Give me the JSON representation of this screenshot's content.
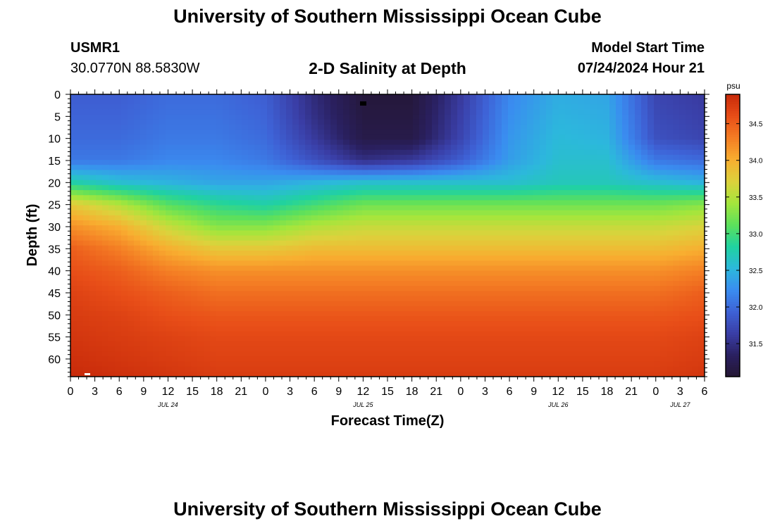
{
  "page_title": "University of Southern Mississippi Ocean Cube",
  "footer_title": "University of Southern Mississippi Ocean Cube",
  "station": {
    "name": "USMR1",
    "coords": "30.0770N  88.5830W"
  },
  "plot_title": "2-D Salinity at Depth",
  "model": {
    "label": "Model Start Time",
    "value": "07/24/2024 Hour 21"
  },
  "chart_data": {
    "type": "heatmap",
    "title": "2-D Salinity at Depth",
    "xlabel": "Forecast Time(Z)",
    "ylabel": "Depth (ft)",
    "x_ticks": [
      "0",
      "3",
      "6",
      "9",
      "12",
      "15",
      "18",
      "21",
      "0",
      "3",
      "6",
      "9",
      "12",
      "15",
      "18",
      "21",
      "0",
      "3",
      "6",
      "9",
      "12",
      "15",
      "18",
      "21",
      "0",
      "3",
      "6"
    ],
    "x_range_hours": [
      0,
      78
    ],
    "day_labels": [
      {
        "label": "JUL 24",
        "hour": 12
      },
      {
        "label": "JUL 25",
        "hour": 36
      },
      {
        "label": "JUL 26",
        "hour": 60
      },
      {
        "label": "JUL 27",
        "hour": 75
      }
    ],
    "y_ticks": [
      0,
      5,
      10,
      15,
      20,
      25,
      30,
      35,
      40,
      45,
      50,
      55,
      60
    ],
    "ylim": [
      0,
      64
    ],
    "y_inverted": true,
    "colorbar": {
      "unit": "psu",
      "ticks": [
        31.5,
        32.0,
        32.5,
        33.0,
        33.5,
        34.0,
        34.5
      ],
      "range": [
        31.05,
        34.9
      ],
      "colors": [
        "#241633",
        "#2a2060",
        "#3a3ea6",
        "#3e62d6",
        "#3a8cf0",
        "#2cb8dc",
        "#20d2a0",
        "#5ce05c",
        "#a4e63c",
        "#dcd23c",
        "#f8ae30",
        "#f47e24",
        "#e84e18",
        "#c82a0a"
      ]
    },
    "time_hours": [
      0,
      6,
      12,
      18,
      24,
      30,
      36,
      42,
      48,
      54,
      60,
      66,
      72,
      78
    ],
    "depth_ft": [
      0,
      5,
      10,
      15,
      20,
      25,
      30,
      35,
      40,
      45,
      50,
      55,
      60,
      64
    ],
    "salinity_psu": [
      [
        31.9,
        31.9,
        32.0,
        32.0,
        31.9,
        31.45,
        31.1,
        31.1,
        31.6,
        32.2,
        32.45,
        32.4,
        31.7,
        31.6
      ],
      [
        31.95,
        31.95,
        32.05,
        32.05,
        31.95,
        31.5,
        31.15,
        31.15,
        31.65,
        32.25,
        32.5,
        32.45,
        31.75,
        31.65
      ],
      [
        32.0,
        32.0,
        32.1,
        32.1,
        32.0,
        31.6,
        31.2,
        31.2,
        31.7,
        32.3,
        32.55,
        32.5,
        31.8,
        31.7
      ],
      [
        32.1,
        32.1,
        32.2,
        32.2,
        32.1,
        31.8,
        31.5,
        31.6,
        31.9,
        32.35,
        32.6,
        32.6,
        32.1,
        32.0
      ],
      [
        32.8,
        32.6,
        32.5,
        32.4,
        32.4,
        32.5,
        32.6,
        32.6,
        32.6,
        32.6,
        32.7,
        32.7,
        32.6,
        32.5
      ],
      [
        33.8,
        33.5,
        33.1,
        32.9,
        32.8,
        33.0,
        33.2,
        33.2,
        33.2,
        33.2,
        33.2,
        33.2,
        33.2,
        33.3
      ],
      [
        34.2,
        34.0,
        33.6,
        33.3,
        33.3,
        33.5,
        33.6,
        33.6,
        33.6,
        33.6,
        33.6,
        33.6,
        33.6,
        33.7
      ],
      [
        34.5,
        34.3,
        34.0,
        33.8,
        33.8,
        33.9,
        33.9,
        33.9,
        33.9,
        33.9,
        33.9,
        33.9,
        33.9,
        34.0
      ],
      [
        34.6,
        34.5,
        34.3,
        34.2,
        34.2,
        34.2,
        34.2,
        34.2,
        34.2,
        34.2,
        34.2,
        34.2,
        34.2,
        34.3
      ],
      [
        34.7,
        34.6,
        34.5,
        34.4,
        34.4,
        34.4,
        34.4,
        34.4,
        34.4,
        34.4,
        34.4,
        34.4,
        34.4,
        34.5
      ],
      [
        34.75,
        34.7,
        34.6,
        34.55,
        34.55,
        34.55,
        34.55,
        34.55,
        34.55,
        34.55,
        34.55,
        34.55,
        34.55,
        34.6
      ],
      [
        34.8,
        34.75,
        34.7,
        34.65,
        34.65,
        34.65,
        34.65,
        34.65,
        34.65,
        34.65,
        34.65,
        34.65,
        34.65,
        34.7
      ],
      [
        34.85,
        34.8,
        34.75,
        34.7,
        34.7,
        34.7,
        34.7,
        34.7,
        34.7,
        34.7,
        34.7,
        34.7,
        34.7,
        34.75
      ],
      [
        34.9,
        34.85,
        34.8,
        34.75,
        34.75,
        34.75,
        34.75,
        34.75,
        34.75,
        34.75,
        34.75,
        34.75,
        34.75,
        34.8
      ]
    ]
  }
}
